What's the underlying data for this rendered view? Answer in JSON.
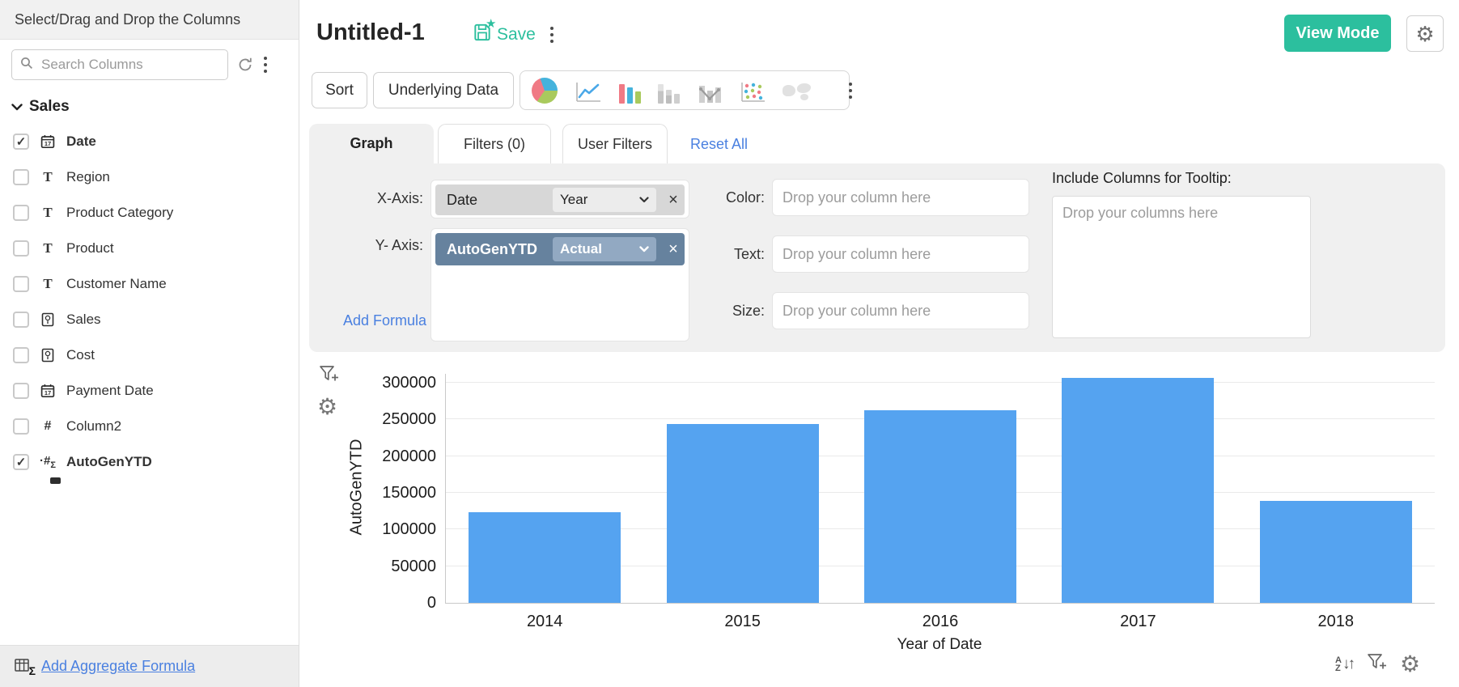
{
  "sidebar": {
    "title": "Select/Drag and Drop the Columns",
    "search_placeholder": "Search Columns",
    "group_label": "Sales",
    "items": [
      {
        "label": "Date",
        "type": "date",
        "checked": true
      },
      {
        "label": "Region",
        "type": "text",
        "checked": false
      },
      {
        "label": "Product Category",
        "type": "text",
        "checked": false
      },
      {
        "label": "Product",
        "type": "text",
        "checked": false
      },
      {
        "label": "Customer Name",
        "type": "text",
        "checked": false
      },
      {
        "label": "Sales",
        "type": "currency",
        "checked": false
      },
      {
        "label": "Cost",
        "type": "currency",
        "checked": false
      },
      {
        "label": "Payment Date",
        "type": "date",
        "checked": false
      },
      {
        "label": "Column2",
        "type": "number",
        "checked": false
      },
      {
        "label": "AutoGenYTD",
        "type": "formula",
        "checked": true
      }
    ],
    "footer_link": "Add Aggregate Formula"
  },
  "header": {
    "title": "Untitled-1",
    "save_label": "Save",
    "view_mode_label": "View Mode"
  },
  "toolbar": {
    "sort_label": "Sort",
    "underlying_label": "Underlying Data",
    "chart_types": [
      "pie-chart",
      "line-chart",
      "bar-chart",
      "stacked-bar-chart",
      "bar-line-chart",
      "scatter-chart",
      "map-chart"
    ]
  },
  "tabs": {
    "graph": "Graph",
    "filters": "Filters  (0)",
    "user_filters": "User Filters",
    "reset_all": "Reset All"
  },
  "config": {
    "x_axis_label": "X-Axis:",
    "x_column": "Date",
    "x_function": "Year",
    "y_axis_label": "Y- Axis:",
    "y_column": "AutoGenYTD",
    "y_function": "Actual",
    "add_formula": "Add Formula",
    "color_label": "Color:",
    "text_label": "Text:",
    "size_label": "Size:",
    "drop_single_placeholder": "Drop your column here",
    "tooltip_label": "Include Columns for Tooltip:",
    "drop_multi_placeholder": "Drop your columns here"
  },
  "chart_data": {
    "type": "bar",
    "categories": [
      "2014",
      "2015",
      "2016",
      "2017",
      "2018"
    ],
    "values": [
      124000,
      244000,
      262000,
      307000,
      139000
    ],
    "series_name": "AutoGenYTD",
    "title": "",
    "xlabel": "Year of Date",
    "ylabel": "AutoGenYTD",
    "ylim": [
      0,
      315000
    ],
    "yticks": [
      0,
      50000,
      100000,
      150000,
      200000,
      250000,
      300000
    ],
    "grid": true,
    "legend": "none",
    "bar_color": "#55a3f0"
  },
  "colors": {
    "accent_teal": "#2cbf9e",
    "link_blue": "#4a80e0",
    "bar_blue": "#55a3f0",
    "y_pill": "#66829e",
    "y_pill_select": "#92a9c2",
    "panel_gray": "#f0f0f0"
  }
}
